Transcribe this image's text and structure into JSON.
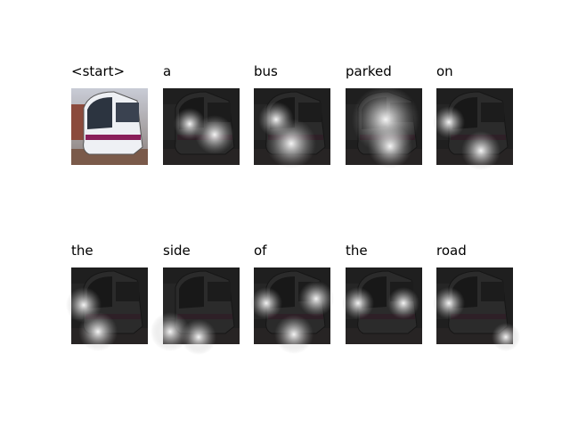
{
  "panels": [
    {
      "word": "<start>"
    },
    {
      "word": "a"
    },
    {
      "word": "bus"
    },
    {
      "word": "parked"
    },
    {
      "word": "on"
    },
    {
      "word": "the"
    },
    {
      "word": "side"
    },
    {
      "word": "of"
    },
    {
      "word": "the"
    },
    {
      "word": "road"
    }
  ]
}
